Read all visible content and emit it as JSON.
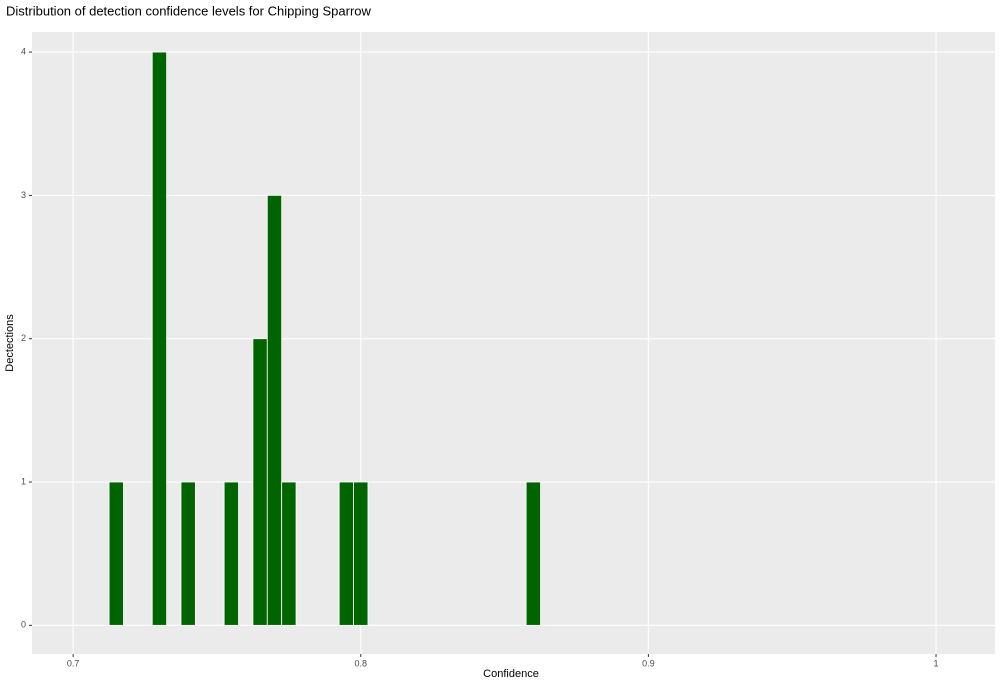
{
  "chart_data": {
    "type": "histogram",
    "title": "Distribution of detection confidence levels for Chipping Sparrow",
    "x_label": "Confidence",
    "y_label": "Dectections",
    "bins": [
      0.7125,
      0.7175,
      0.7225,
      0.7275,
      0.7325,
      0.7375,
      0.7425,
      0.7475,
      0.7525,
      0.7575,
      0.7625,
      0.7675,
      0.7725,
      0.7775,
      0.7825,
      0.7875,
      0.7925,
      0.7975,
      0.8025,
      0.8075,
      0.8125,
      0.8175,
      0.8225,
      0.8275,
      0.8325,
      0.8375,
      0.8425,
      0.8475,
      0.8525,
      0.8575,
      0.8625
    ],
    "values": [
      1,
      0,
      0,
      4,
      0,
      1,
      0,
      0,
      1,
      0,
      2,
      3,
      1,
      0,
      0,
      0,
      1,
      1,
      0,
      0,
      0,
      0,
      0,
      0,
      0,
      0,
      0,
      0,
      0,
      1
    ],
    "color": "#006400",
    "xlim": [
      0.6857,
      1.0205
    ],
    "xticks": [
      0.7,
      0.8,
      0.9,
      1.0
    ],
    "ylim": [
      -0.2,
      4.14
    ],
    "yticks": [
      0,
      1,
      2,
      3,
      4
    ],
    "grid": true
  }
}
